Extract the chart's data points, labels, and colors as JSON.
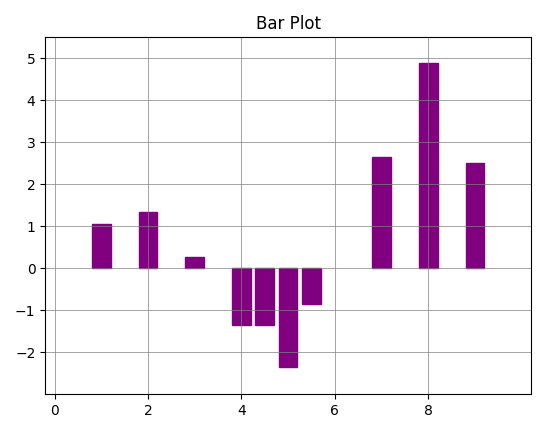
{
  "x": [
    1,
    2,
    3,
    4,
    4.5,
    5,
    5.5,
    7,
    8,
    9
  ],
  "values": [
    1.05,
    1.35,
    0.28,
    -1.35,
    -1.35,
    -2.35,
    -0.85,
    2.65,
    4.9,
    2.5
  ],
  "bar_color": "#800080",
  "bar_width": 0.4,
  "title": "Bar Plot",
  "title_fontsize": 12,
  "xlim": [
    -0.2,
    10.2
  ],
  "ylim": [
    -3.0,
    5.5
  ],
  "xticks": [
    0,
    2,
    4,
    6,
    8
  ],
  "yticks": [
    -2,
    -1,
    0,
    1,
    2,
    3,
    4,
    5
  ],
  "grid": true,
  "background_color": "#ffffff"
}
